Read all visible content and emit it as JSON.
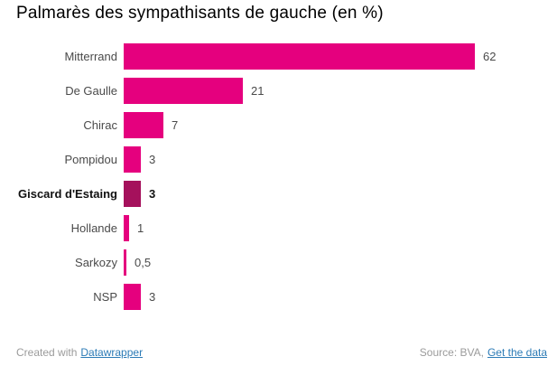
{
  "chart_data": {
    "type": "bar",
    "orientation": "horizontal",
    "title": "Palmarès des sympathisants de gauche (en %)",
    "categories": [
      "Mitterrand",
      "De Gaulle",
      "Chirac",
      "Pompidou",
      "Giscard d'Estaing",
      "Hollande",
      "Sarkozy",
      "NSP"
    ],
    "values": [
      62,
      21,
      7,
      3,
      3,
      1,
      0.5,
      3
    ],
    "value_labels": [
      "62",
      "21",
      "7",
      "3",
      "3",
      "1",
      "0,5",
      "3"
    ],
    "xlim": [
      0,
      62
    ],
    "grid": false,
    "legend": "none",
    "highlighted_category": "Giscard d'Estaing",
    "colors": {
      "bar": "#e5007e",
      "highlight": "#a5115c",
      "category_label": "#4a4a4a",
      "title": "#000000"
    }
  },
  "footer": {
    "created_prefix": "Created with",
    "created_link": "Datawrapper",
    "source_prefix": "Source: BVA,",
    "source_link": "Get the data",
    "text_color": "#9b9b9b",
    "link_color": "#2c7bb6"
  }
}
